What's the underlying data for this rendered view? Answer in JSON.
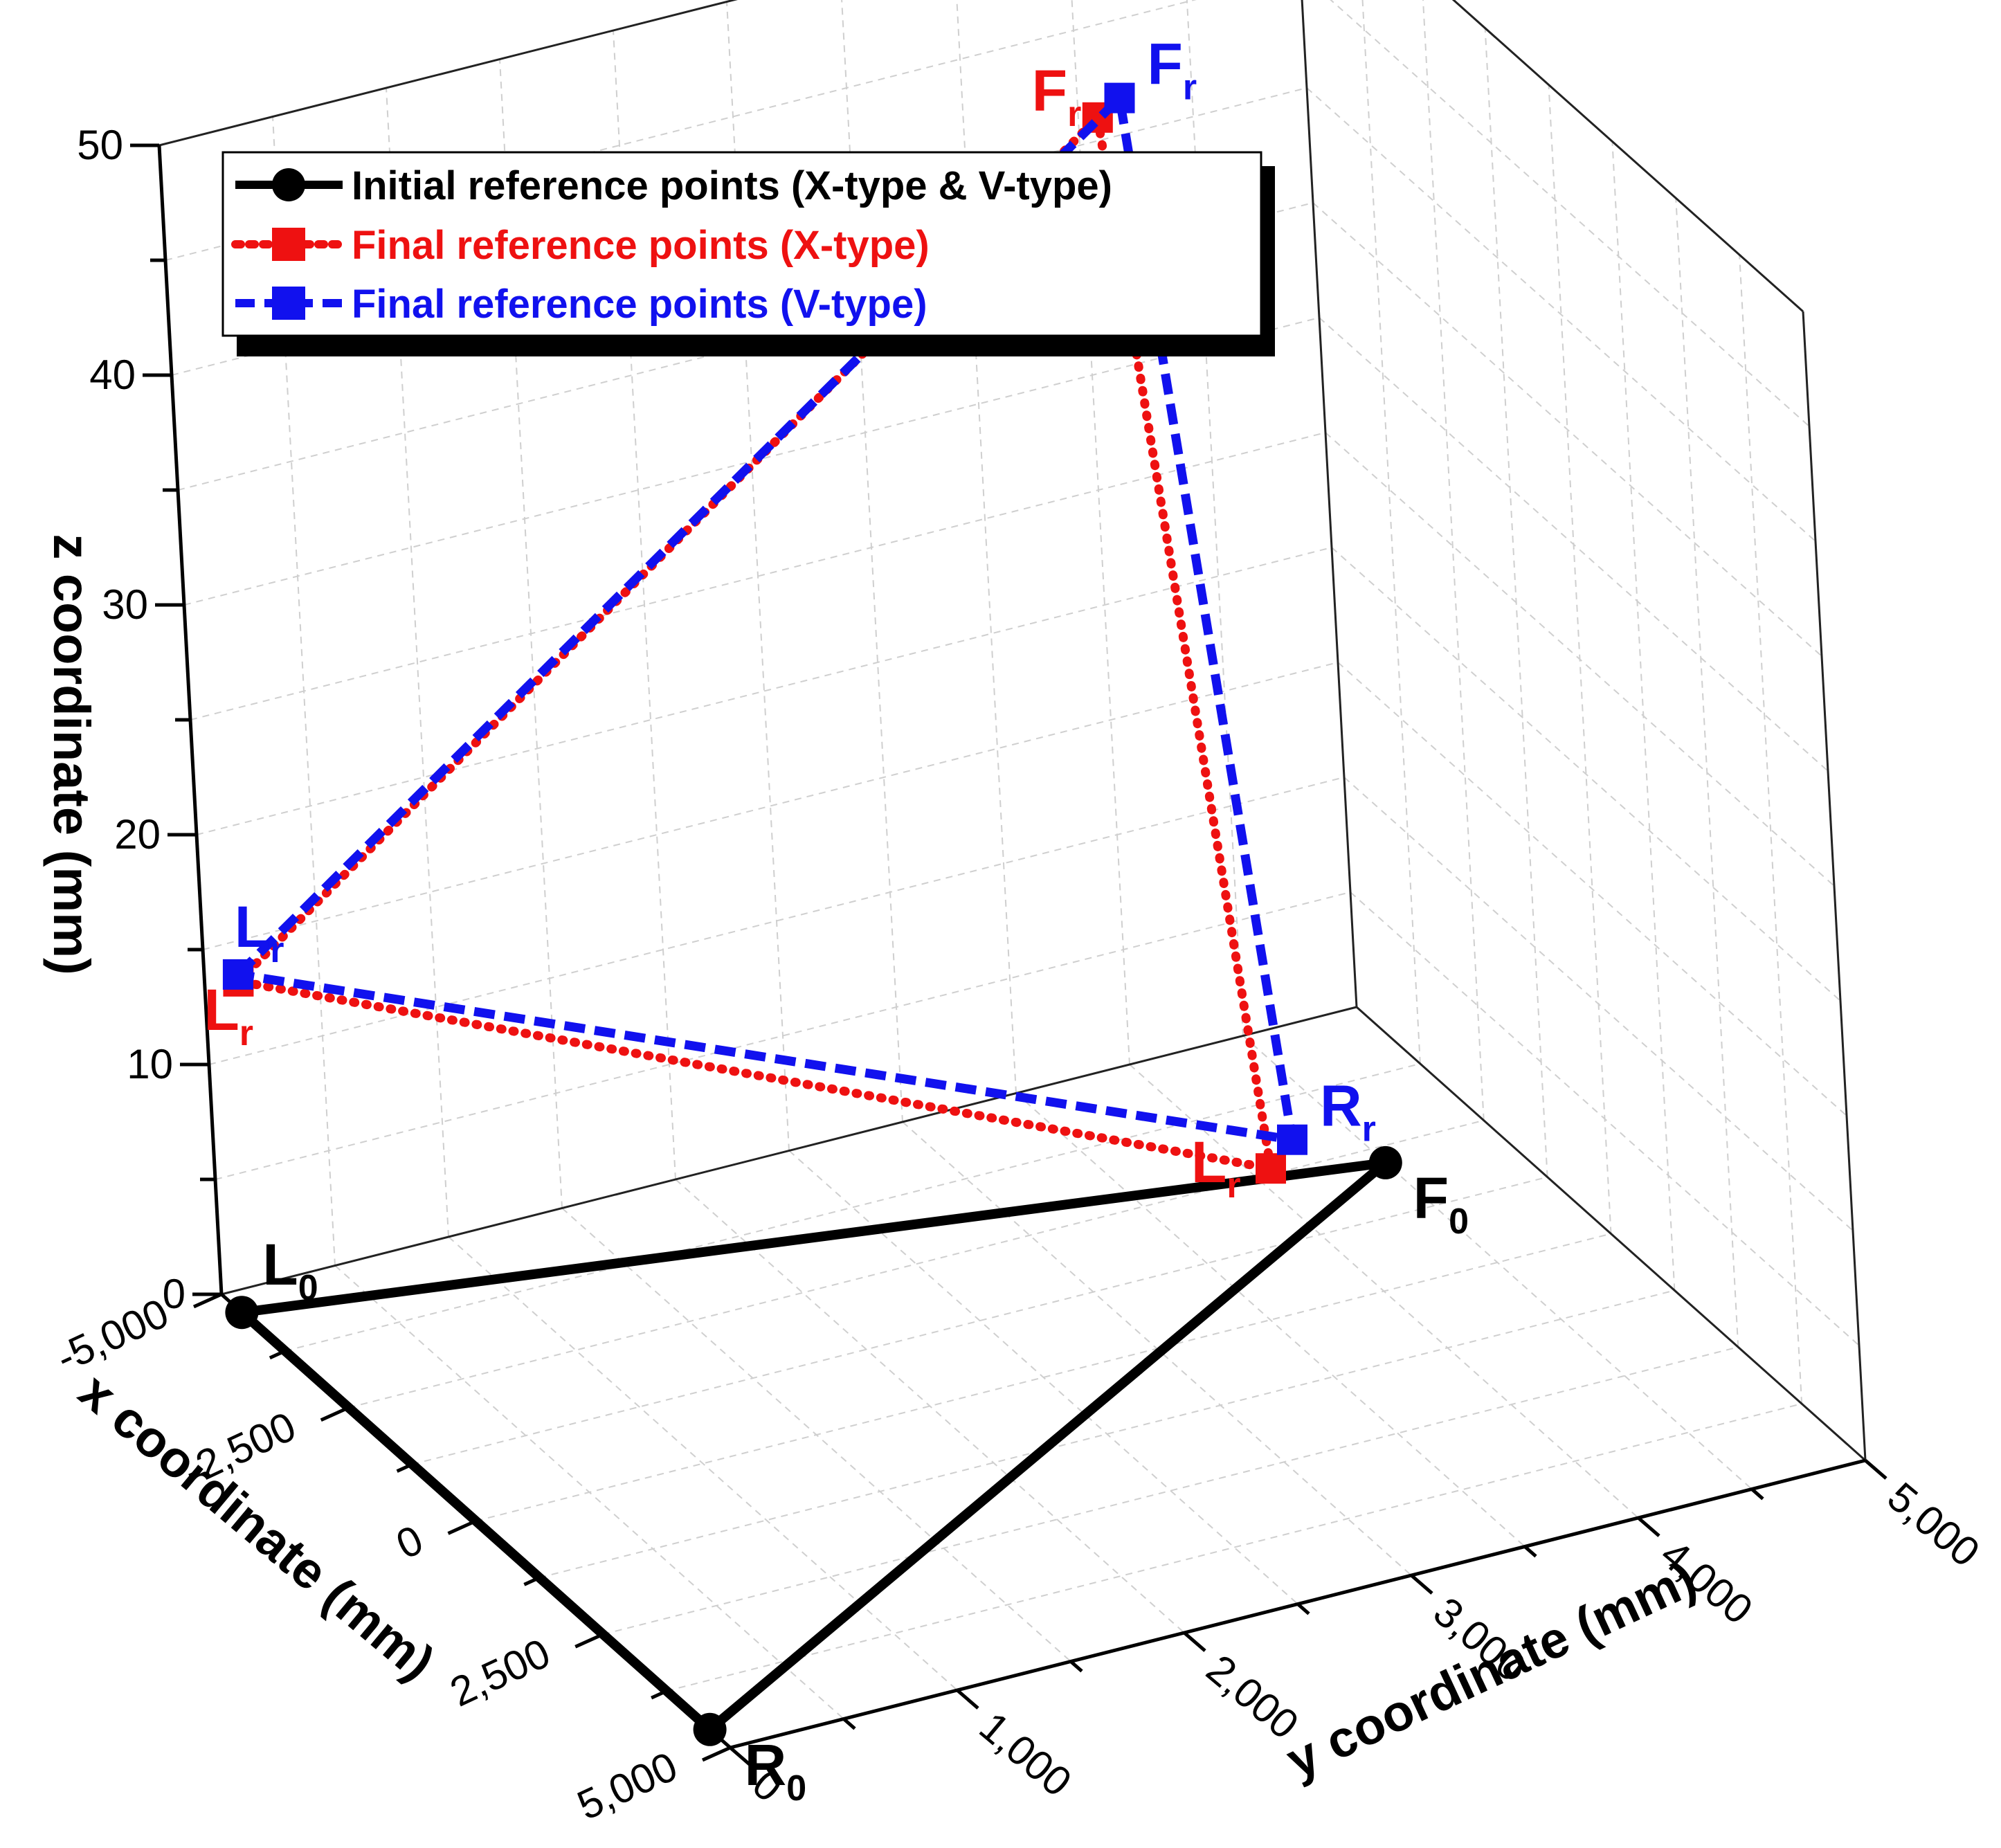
{
  "chart_data": {
    "type": "line3d",
    "axes": {
      "x": {
        "title": "x coordinate (mm)",
        "range": [
          -5000,
          5000
        ],
        "ticks": [
          "-5,000",
          "-2,500",
          "0",
          "2,500",
          "5,000"
        ]
      },
      "y": {
        "title": "y coordinate (mm)",
        "range": [
          0,
          5000
        ],
        "ticks": [
          "0",
          "1,000",
          "2,000",
          "3,000",
          "4,000",
          "5,000"
        ]
      },
      "z": {
        "title": "z coordinate (mm)",
        "range": [
          0,
          50
        ],
        "ticks": [
          "0",
          "10",
          "20",
          "30",
          "40",
          "50"
        ]
      }
    },
    "grid": true,
    "legend_position": "top-left",
    "series": [
      {
        "name": "Initial reference points (X-type & V-type)",
        "color": "#000000",
        "marker": "circle",
        "line": "solid",
        "points": [
          {
            "label": "L",
            "sub": "0",
            "x": -4600,
            "y": 0,
            "z": 0
          },
          {
            "label": "F",
            "sub": "0",
            "x": -2200,
            "y": 4500,
            "z": 0
          },
          {
            "label": "R",
            "sub": "0",
            "x": 4600,
            "y": 0,
            "z": 0
          }
        ]
      },
      {
        "name": "Final reference points (X-type)",
        "color": "#ee1111",
        "marker": "square",
        "line": "dotted",
        "points": [
          {
            "label": "L",
            "sub": "r",
            "x": -4300,
            "y": 0,
            "z": 15
          },
          {
            "label": "F",
            "sub": "r",
            "x": -4600,
            "y": 4000,
            "z": 42
          },
          {
            "label": "L",
            "sub": "r",
            "x": -2200,
            "y": 4000,
            "z": 1
          }
        ]
      },
      {
        "name": "Final reference points (V-type)",
        "color": "#1111ee",
        "marker": "square",
        "line": "dashed",
        "points": [
          {
            "label": "L",
            "sub": "r",
            "x": -4300,
            "y": 0,
            "z": 15.3
          },
          {
            "label": "F",
            "sub": "r",
            "x": -4600,
            "y": 4100,
            "z": 42.6
          },
          {
            "label": "R",
            "sub": "r",
            "x": -2200,
            "y": 4100,
            "z": 2
          }
        ]
      }
    ]
  }
}
